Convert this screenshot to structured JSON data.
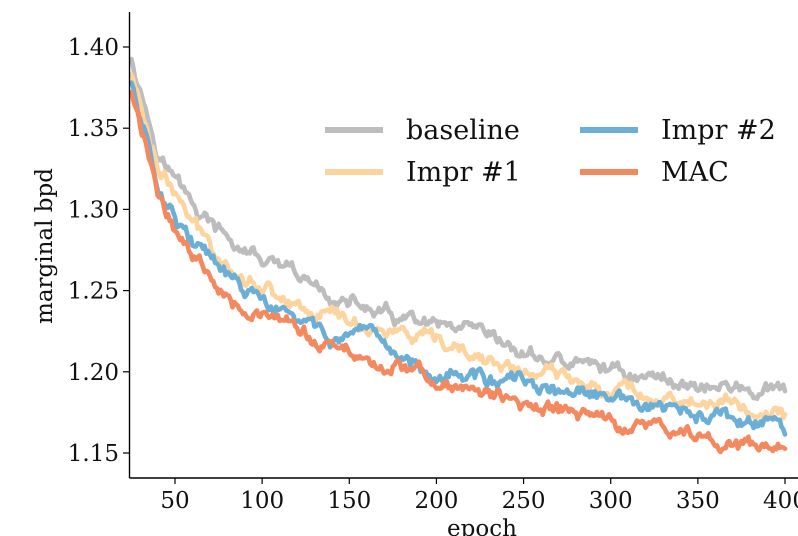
{
  "chart_data": {
    "type": "line",
    "title": "",
    "xlabel": "epoch",
    "ylabel": "marginal bpd",
    "xlim": [
      25,
      400
    ],
    "ylim": [
      1.135,
      1.42
    ],
    "xticks": [
      50,
      100,
      150,
      200,
      250,
      300,
      350,
      400
    ],
    "xtick_labels": [
      "50",
      "100",
      "150",
      "200",
      "250",
      "300",
      "350",
      "400"
    ],
    "yticks": [
      1.15,
      1.2,
      1.25,
      1.3,
      1.35,
      1.4
    ],
    "ytick_labels": [
      "1.15",
      "1.20",
      "1.25",
      "1.30",
      "1.35",
      "1.40"
    ],
    "grid": false,
    "legend": {
      "placement": "upper-right",
      "columns": 2
    },
    "x": [
      25,
      40,
      60,
      80,
      100,
      120,
      150,
      175,
      200,
      225,
      250,
      275,
      300,
      325,
      350,
      375,
      400
    ],
    "series": [
      {
        "name": "baseline",
        "color": "#bdbdbd",
        "values": [
          1.395,
          1.338,
          1.302,
          1.28,
          1.268,
          1.255,
          1.242,
          1.232,
          1.225,
          1.218,
          1.21,
          1.205,
          1.202,
          1.196,
          1.193,
          1.189,
          1.185
        ]
      },
      {
        "name": "Impr #1",
        "color": "#fdd49e",
        "values": [
          1.383,
          1.33,
          1.29,
          1.268,
          1.254,
          1.242,
          1.232,
          1.225,
          1.214,
          1.207,
          1.2,
          1.195,
          1.192,
          1.186,
          1.181,
          1.178,
          1.173
        ]
      },
      {
        "name": "Impr #2",
        "color": "#6baed6",
        "values": [
          1.378,
          1.318,
          1.28,
          1.257,
          1.242,
          1.23,
          1.218,
          1.21,
          1.202,
          1.197,
          1.191,
          1.186,
          1.182,
          1.177,
          1.172,
          1.168,
          1.165
        ]
      },
      {
        "name": "MAC",
        "color": "#f4895f",
        "values": [
          1.372,
          1.31,
          1.272,
          1.25,
          1.236,
          1.223,
          1.211,
          1.203,
          1.195,
          1.187,
          1.18,
          1.175,
          1.17,
          1.165,
          1.16,
          1.156,
          1.151
        ]
      }
    ]
  }
}
